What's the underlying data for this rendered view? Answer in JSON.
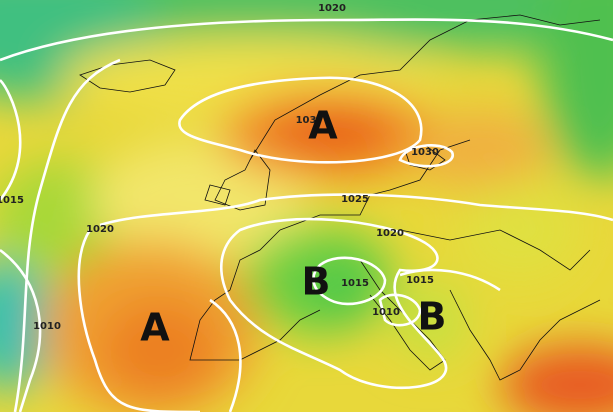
{
  "map": {
    "pressure_centers": [
      "A",
      "A",
      "B",
      "B"
    ],
    "isobar_labels": [
      "1020",
      "1015",
      "1020",
      "103",
      "1030",
      "1025",
      "1020",
      "1015",
      "1015",
      "1010",
      "1010"
    ]
  }
}
